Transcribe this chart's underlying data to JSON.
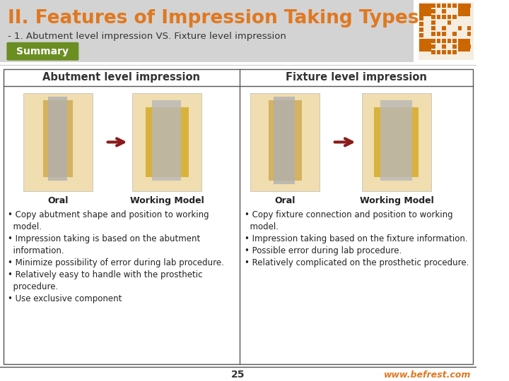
{
  "title": "II. Features of Impression Taking Types",
  "subtitle": "- 1. Abutment level impression VS. Fixture level impression",
  "summary_label": "Summary",
  "col1_header": "Abutment level impression",
  "col2_header": "Fixture level impression",
  "col1_oral_label": "Oral",
  "col1_model_label": "Working Model",
  "col2_oral_label": "Oral",
  "col2_model_label": "Working Model",
  "col1_bullets": [
    "• Copy abutment shape and position to working model.",
    "• Impression taking is based on the abutment information.",
    "• Minimize possibility of error during lab procedure.",
    "• Relatively easy to handle with the prosthetic procedure.",
    "• Use exclusive component"
  ],
  "col2_bullets": [
    "• Copy fixture connection and position to working model.",
    "• Impression taking based on the fixture information.",
    "• Possible error during lab procedure.",
    "• Relatively complicated on the prosthetic procedure."
  ],
  "page_number": "25",
  "website": "www.befrest.com",
  "title_color": "#E07820",
  "subtitle_color": "#333333",
  "summary_bg": "#6B8E23",
  "summary_text_color": "#FFFFFF",
  "header_text_color": "#333333",
  "slide_bg": "#FFFFFF",
  "title_area_bg": "#D3D3D3",
  "bullet_color": "#222222",
  "label_color": "#222222",
  "website_color": "#E07820",
  "page_num_color": "#333333",
  "arrow_color": "#8B1A1A",
  "qr_color": "#CC6600",
  "table_border_color": "#555555"
}
